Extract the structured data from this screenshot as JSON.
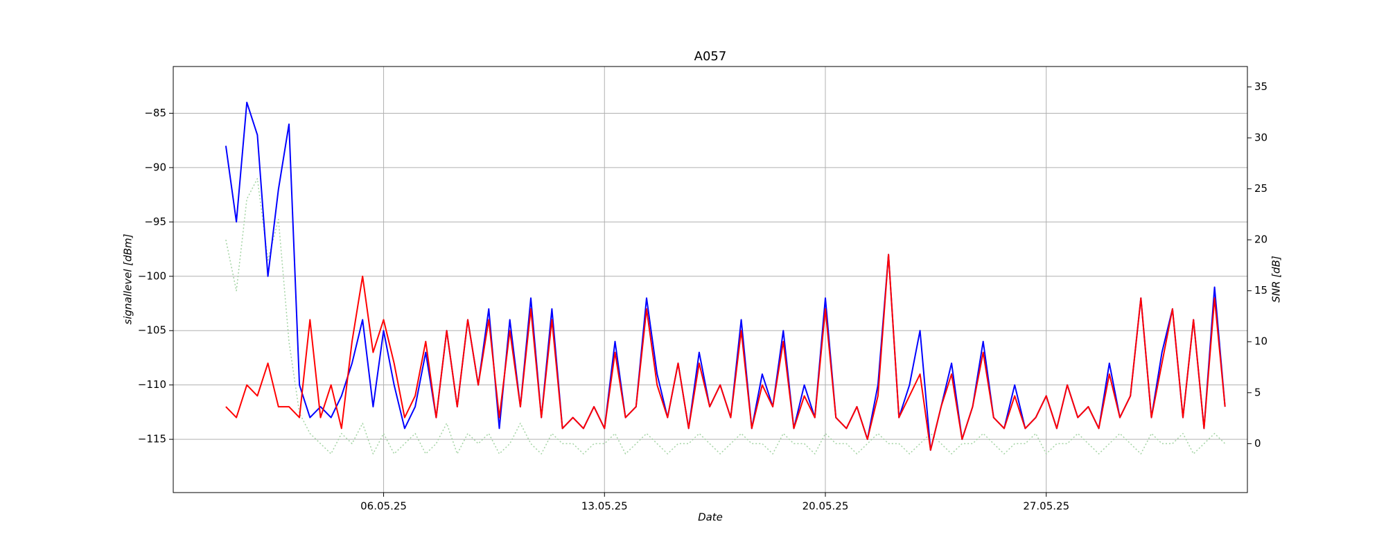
{
  "chart_data": {
    "type": "line",
    "title": "A057",
    "xlabel": "Date",
    "ylabel": "signallevel [dBm]",
    "y2label": "SNR [dB]",
    "x": [
      "2025-05-01T00:00",
      "2025-05-01T08:00",
      "2025-05-01T16:00",
      "2025-05-02T00:00",
      "2025-05-02T08:00",
      "2025-05-02T16:00",
      "2025-05-03T00:00",
      "2025-05-03T08:00",
      "2025-05-03T16:00",
      "2025-05-04T00:00",
      "2025-05-04T08:00",
      "2025-05-04T16:00",
      "2025-05-05T00:00",
      "2025-05-05T08:00",
      "2025-05-05T16:00",
      "2025-05-06T00:00",
      "2025-05-06T08:00",
      "2025-05-06T16:00",
      "2025-05-07T00:00",
      "2025-05-07T08:00",
      "2025-05-07T16:00",
      "2025-05-08T00:00",
      "2025-05-08T08:00",
      "2025-05-08T16:00",
      "2025-05-09T00:00",
      "2025-05-09T08:00",
      "2025-05-09T16:00",
      "2025-05-10T00:00",
      "2025-05-10T08:00",
      "2025-05-10T16:00",
      "2025-05-11T00:00",
      "2025-05-11T08:00",
      "2025-05-11T16:00",
      "2025-05-12T00:00",
      "2025-05-12T08:00",
      "2025-05-12T16:00",
      "2025-05-13T00:00",
      "2025-05-13T08:00",
      "2025-05-13T16:00",
      "2025-05-14T00:00",
      "2025-05-14T08:00",
      "2025-05-14T16:00",
      "2025-05-15T00:00",
      "2025-05-15T08:00",
      "2025-05-15T16:00",
      "2025-05-16T00:00",
      "2025-05-16T08:00",
      "2025-05-16T16:00",
      "2025-05-17T00:00",
      "2025-05-17T08:00",
      "2025-05-17T16:00",
      "2025-05-18T00:00",
      "2025-05-18T08:00",
      "2025-05-18T16:00",
      "2025-05-19T00:00",
      "2025-05-19T08:00",
      "2025-05-19T16:00",
      "2025-05-20T00:00",
      "2025-05-20T08:00",
      "2025-05-20T16:00",
      "2025-05-21T00:00",
      "2025-05-21T08:00",
      "2025-05-21T16:00",
      "2025-05-22T00:00",
      "2025-05-22T08:00",
      "2025-05-22T16:00",
      "2025-05-23T00:00",
      "2025-05-23T08:00",
      "2025-05-23T16:00",
      "2025-05-24T00:00",
      "2025-05-24T08:00",
      "2025-05-24T16:00",
      "2025-05-25T00:00",
      "2025-05-25T08:00",
      "2025-05-25T16:00",
      "2025-05-26T00:00",
      "2025-05-26T08:00",
      "2025-05-26T16:00",
      "2025-05-27T00:00",
      "2025-05-27T08:00",
      "2025-05-27T16:00",
      "2025-05-28T00:00",
      "2025-05-28T08:00",
      "2025-05-28T16:00",
      "2025-05-29T00:00",
      "2025-05-29T08:00",
      "2025-05-29T16:00",
      "2025-05-30T00:00",
      "2025-05-30T08:00",
      "2025-05-30T16:00",
      "2025-05-31T00:00",
      "2025-05-31T08:00",
      "2025-05-31T16:00",
      "2025-06-01T00:00",
      "2025-06-01T08:00",
      "2025-06-01T16:00"
    ],
    "series": [
      {
        "color": "#0000ff",
        "axis": "y",
        "style": "solid",
        "values": [
          -88,
          -95,
          -84,
          -87,
          -100,
          -92,
          -86,
          -110,
          -113,
          -112,
          -113,
          -111,
          -108,
          -104,
          -112,
          -105,
          -110,
          -114,
          -112,
          -107,
          -113,
          -105,
          -112,
          -104,
          -110,
          -103,
          -114,
          -104,
          -112,
          -102,
          -113,
          -103,
          -114,
          -113,
          -114,
          -112,
          -114,
          -106,
          -113,
          -112,
          -102,
          -109,
          -113,
          -108,
          -114,
          -107,
          -112,
          -110,
          -113,
          -104,
          -114,
          -109,
          -112,
          -105,
          -114,
          -110,
          -113,
          -102,
          -113,
          -114,
          -112,
          -115,
          -110,
          -98,
          -113,
          -110,
          -105,
          -116,
          -112,
          -108,
          -115,
          -112,
          -106,
          -113,
          -114,
          -110,
          -114,
          -113,
          -111,
          -114,
          -110,
          -113,
          -112,
          -114,
          -108,
          -113,
          -111,
          -102,
          -113,
          -107,
          -103,
          -113,
          -104,
          -114,
          -101,
          -112
        ]
      },
      {
        "color": "#ff0000",
        "axis": "y",
        "style": "solid",
        "values": [
          -112,
          -113,
          -110,
          -111,
          -108,
          -112,
          -112,
          -113,
          -104,
          -113,
          -110,
          -114,
          -106,
          -100,
          -107,
          -104,
          -108,
          -113,
          -111,
          -106,
          -113,
          -105,
          -112,
          -104,
          -110,
          -104,
          -113,
          -105,
          -112,
          -103,
          -113,
          -104,
          -114,
          -113,
          -114,
          -112,
          -114,
          -107,
          -113,
          -112,
          -103,
          -110,
          -113,
          -108,
          -114,
          -108,
          -112,
          -110,
          -113,
          -105,
          -114,
          -110,
          -112,
          -106,
          -114,
          -111,
          -113,
          -103,
          -113,
          -114,
          -112,
          -115,
          -111,
          -98,
          -113,
          -111,
          -109,
          -116,
          -112,
          -109,
          -115,
          -112,
          -107,
          -113,
          -114,
          -111,
          -114,
          -113,
          -111,
          -114,
          -110,
          -113,
          -112,
          -114,
          -109,
          -113,
          -111,
          -102,
          -113,
          -108,
          -103,
          -113,
          -104,
          -114,
          -102,
          -112
        ]
      },
      {
        "color": "#a3d3a3",
        "axis": "y2",
        "style": "dotted",
        "values": [
          20,
          15,
          24,
          26,
          18,
          22,
          10,
          3,
          1,
          0,
          -1,
          1,
          0,
          2,
          -1,
          1,
          -1,
          0,
          1,
          -1,
          0,
          2,
          -1,
          1,
          0,
          1,
          -1,
          0,
          2,
          0,
          -1,
          1,
          0,
          0,
          -1,
          0,
          0,
          1,
          -1,
          0,
          1,
          0,
          -1,
          0,
          0,
          1,
          0,
          -1,
          0,
          1,
          0,
          0,
          -1,
          1,
          0,
          0,
          -1,
          1,
          0,
          0,
          -1,
          0,
          1,
          0,
          0,
          -1,
          0,
          1,
          0,
          -1,
          0,
          0,
          1,
          0,
          -1,
          0,
          0,
          1,
          -1,
          0,
          0,
          1,
          0,
          -1,
          0,
          1,
          0,
          -1,
          1,
          0,
          0,
          1,
          -1,
          0,
          1,
          0
        ]
      }
    ],
    "xlim": [
      "2025-04-29T08:00",
      "2025-06-02T09:00"
    ],
    "xticks": [
      {
        "value": "2025-05-06T00:00",
        "label": "06.05.25"
      },
      {
        "value": "2025-05-13T00:00",
        "label": "13.05.25"
      },
      {
        "value": "2025-05-20T00:00",
        "label": "20.05.25"
      },
      {
        "value": "2025-05-27T00:00",
        "label": "27.05.25"
      }
    ],
    "ylim": [
      -119.9,
      -80.7
    ],
    "yticks": [
      {
        "value": -115,
        "label": "−115"
      },
      {
        "value": -110,
        "label": "−110"
      },
      {
        "value": -105,
        "label": "−105"
      },
      {
        "value": -100,
        "label": "−100"
      },
      {
        "value": -95,
        "label": "−95"
      },
      {
        "value": -90,
        "label": "−90"
      },
      {
        "value": -85,
        "label": "−85"
      }
    ],
    "y2lim": [
      -4.8,
      37.0
    ],
    "y2ticks": [
      0,
      5,
      10,
      15,
      20,
      25,
      30,
      35
    ],
    "grid": true
  }
}
